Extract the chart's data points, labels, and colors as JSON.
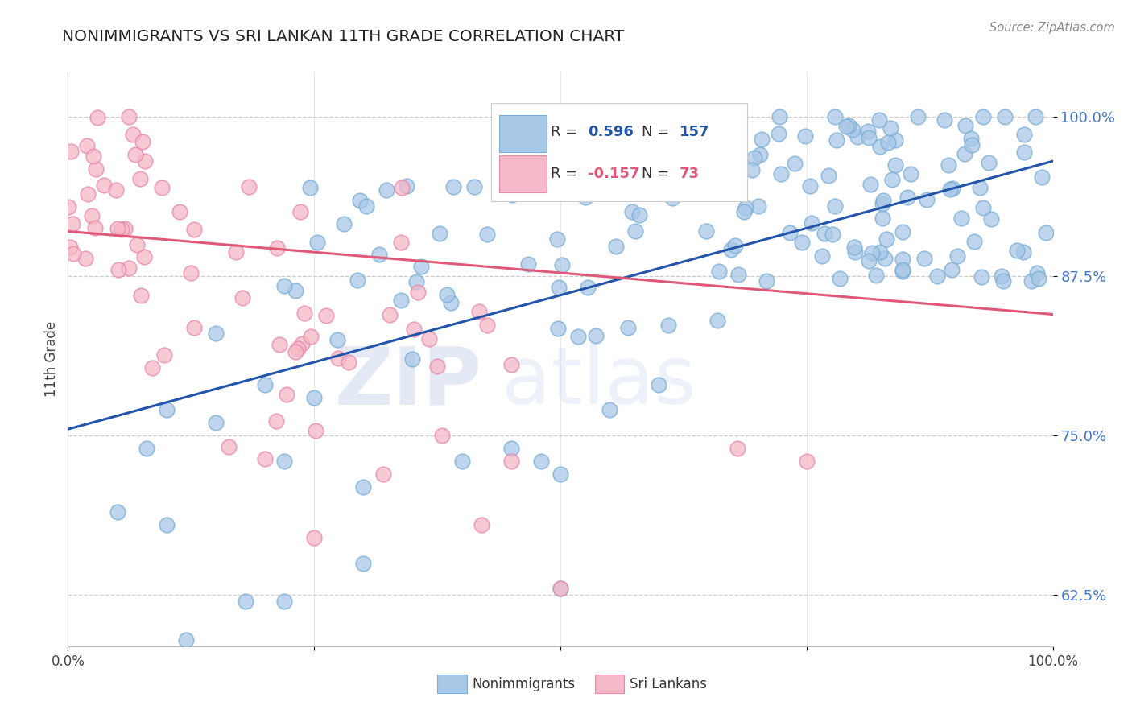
{
  "title": "NONIMMIGRANTS VS SRI LANKAN 11TH GRADE CORRELATION CHART",
  "source": "Source: ZipAtlas.com",
  "ylabel": "11th Grade",
  "blue_R": 0.596,
  "blue_N": 157,
  "pink_R": -0.157,
  "pink_N": 73,
  "blue_color": "#a8c8e8",
  "blue_edge_color": "#7aaed4",
  "blue_line_color": "#2255aa",
  "pink_color": "#f5b8c8",
  "pink_edge_color": "#e888a8",
  "pink_line_color": "#e05878",
  "tick_color": "#4477cc",
  "ytick_vals": [
    0.625,
    0.75,
    0.875,
    1.0
  ],
  "ytick_labels": [
    "62.5%",
    "75.0%",
    "87.5%",
    "100.0%"
  ],
  "xlim": [
    0.0,
    1.0
  ],
  "ylim": [
    0.585,
    1.035
  ],
  "blue_trend_x0": 0.0,
  "blue_trend_y0": 0.755,
  "blue_trend_x1": 1.0,
  "blue_trend_y1": 0.965,
  "pink_trend_x0": 0.0,
  "pink_trend_y0": 0.91,
  "pink_trend_x1": 1.0,
  "pink_trend_y1": 0.845,
  "watermark_zip": "ZIP",
  "watermark_atlas": "atlas"
}
